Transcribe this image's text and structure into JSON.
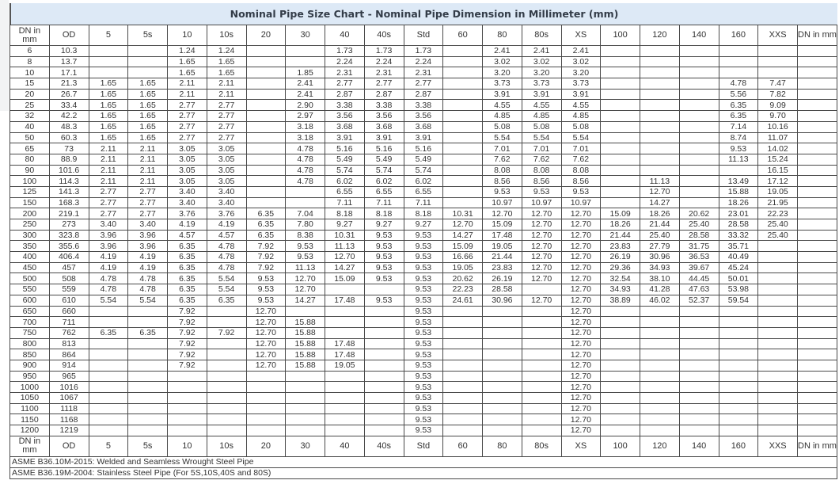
{
  "title": "Nominal Pipe Size Chart - Nominal Pipe Dimension in Millimeter (mm)",
  "headers": [
    "DN in mm",
    "OD",
    "5",
    "5s",
    "10",
    "10s",
    "20",
    "30",
    "40",
    "40s",
    "Std",
    "60",
    "80",
    "80s",
    "XS",
    "100",
    "120",
    "140",
    "160",
    "XXS",
    "DN in mm"
  ],
  "rows": [
    [
      "6",
      "10.3",
      "",
      "",
      "1.24",
      "1.24",
      "",
      "",
      "1.73",
      "1.73",
      "1.73",
      "",
      "2.41",
      "2.41",
      "2.41",
      "",
      "",
      "",
      "",
      "",
      ""
    ],
    [
      "8",
      "13.7",
      "",
      "",
      "1.65",
      "1.65",
      "",
      "",
      "2.24",
      "2.24",
      "2.24",
      "",
      "3.02",
      "3.02",
      "3.02",
      "",
      "",
      "",
      "",
      "",
      ""
    ],
    [
      "10",
      "17.1",
      "",
      "",
      "1.65",
      "1.65",
      "",
      "1.85",
      "2.31",
      "2.31",
      "2.31",
      "",
      "3.20",
      "3.20",
      "3.20",
      "",
      "",
      "",
      "",
      "",
      ""
    ],
    [
      "15",
      "21.3",
      "1.65",
      "1.65",
      "2.11",
      "2.11",
      "",
      "2.41",
      "2.77",
      "2.77",
      "2.77",
      "",
      "3.73",
      "3.73",
      "3.73",
      "",
      "",
      "",
      "4.78",
      "7.47",
      ""
    ],
    [
      "20",
      "26.7",
      "1.65",
      "1.65",
      "2.11",
      "2.11",
      "",
      "2.41",
      "2.87",
      "2.87",
      "2.87",
      "",
      "3.91",
      "3.91",
      "3.91",
      "",
      "",
      "",
      "5.56",
      "7.82",
      ""
    ],
    [
      "25",
      "33.4",
      "1.65",
      "1.65",
      "2.77",
      "2.77",
      "",
      "2.90",
      "3.38",
      "3.38",
      "3.38",
      "",
      "4.55",
      "4.55",
      "4.55",
      "",
      "",
      "",
      "6.35",
      "9.09",
      ""
    ],
    [
      "32",
      "42.2",
      "1.65",
      "1.65",
      "2.77",
      "2.77",
      "",
      "2.97",
      "3.56",
      "3.56",
      "3.56",
      "",
      "4.85",
      "4.85",
      "4.85",
      "",
      "",
      "",
      "6.35",
      "9.70",
      ""
    ],
    [
      "40",
      "48.3",
      "1.65",
      "1.65",
      "2.77",
      "2.77",
      "",
      "3.18",
      "3.68",
      "3.68",
      "3.68",
      "",
      "5.08",
      "5.08",
      "5.08",
      "",
      "",
      "",
      "7.14",
      "10.16",
      ""
    ],
    [
      "50",
      "60.3",
      "1.65",
      "1.65",
      "2.77",
      "2.77",
      "",
      "3.18",
      "3.91",
      "3.91",
      "3.91",
      "",
      "5.54",
      "5.54",
      "5.54",
      "",
      "",
      "",
      "8.74",
      "11.07",
      ""
    ],
    [
      "65",
      "73",
      "2.11",
      "2.11",
      "3.05",
      "3.05",
      "",
      "4.78",
      "5.16",
      "5.16",
      "5.16",
      "",
      "7.01",
      "7.01",
      "7.01",
      "",
      "",
      "",
      "9.53",
      "14.02",
      ""
    ],
    [
      "80",
      "88.9",
      "2.11",
      "2.11",
      "3.05",
      "3.05",
      "",
      "4.78",
      "5.49",
      "5.49",
      "5.49",
      "",
      "7.62",
      "7.62",
      "7.62",
      "",
      "",
      "",
      "11.13",
      "15.24",
      ""
    ],
    [
      "90",
      "101.6",
      "2.11",
      "2.11",
      "3.05",
      "3.05",
      "",
      "4.78",
      "5.74",
      "5.74",
      "5.74",
      "",
      "8.08",
      "8.08",
      "8.08",
      "",
      "",
      "",
      "",
      "16.15",
      ""
    ],
    [
      "100",
      "114.3",
      "2.11",
      "2.11",
      "3.05",
      "3.05",
      "",
      "4.78",
      "6.02",
      "6.02",
      "6.02",
      "",
      "8.56",
      "8.56",
      "8.56",
      "",
      "11.13",
      "",
      "13.49",
      "17.12",
      ""
    ],
    [
      "125",
      "141.3",
      "2.77",
      "2.77",
      "3.40",
      "3.40",
      "",
      "",
      "6.55",
      "6.55",
      "6.55",
      "",
      "9.53",
      "9.53",
      "9.53",
      "",
      "12.70",
      "",
      "15.88",
      "19.05",
      ""
    ],
    [
      "150",
      "168.3",
      "2.77",
      "2.77",
      "3.40",
      "3.40",
      "",
      "",
      "7.11",
      "7.11",
      "7.11",
      "",
      "10.97",
      "10.97",
      "10.97",
      "",
      "14.27",
      "",
      "18.26",
      "21.95",
      ""
    ],
    [
      "200",
      "219.1",
      "2.77",
      "2.77",
      "3.76",
      "3.76",
      "6.35",
      "7.04",
      "8.18",
      "8.18",
      "8.18",
      "10.31",
      "12.70",
      "12.70",
      "12.70",
      "15.09",
      "18.26",
      "20.62",
      "23.01",
      "22.23",
      ""
    ],
    [
      "250",
      "273",
      "3.40",
      "3.40",
      "4.19",
      "4.19",
      "6.35",
      "7.80",
      "9.27",
      "9.27",
      "9.27",
      "12.70",
      "15.09",
      "12.70",
      "12.70",
      "18.26",
      "21.44",
      "25.40",
      "28.58",
      "25.40",
      ""
    ],
    [
      "300",
      "323.8",
      "3.96",
      "3.96",
      "4.57",
      "4.57",
      "6.35",
      "8.38",
      "10.31",
      "9.53",
      "9.53",
      "14.27",
      "17.48",
      "12.70",
      "12.70",
      "21.44",
      "25.40",
      "28.58",
      "33.32",
      "25.40",
      ""
    ],
    [
      "350",
      "355.6",
      "3.96",
      "3.96",
      "6.35",
      "4.78",
      "7.92",
      "9.53",
      "11.13",
      "9.53",
      "9.53",
      "15.09",
      "19.05",
      "12.70",
      "12.70",
      "23.83",
      "27.79",
      "31.75",
      "35.71",
      "",
      ""
    ],
    [
      "400",
      "406.4",
      "4.19",
      "4.19",
      "6.35",
      "4.78",
      "7.92",
      "9.53",
      "12.70",
      "9.53",
      "9.53",
      "16.66",
      "21.44",
      "12.70",
      "12.70",
      "26.19",
      "30.96",
      "36.53",
      "40.49",
      "",
      ""
    ],
    [
      "450",
      "457",
      "4.19",
      "4.19",
      "6.35",
      "4.78",
      "7.92",
      "11.13",
      "14.27",
      "9.53",
      "9.53",
      "19.05",
      "23.83",
      "12.70",
      "12.70",
      "29.36",
      "34.93",
      "39.67",
      "45.24",
      "",
      ""
    ],
    [
      "500",
      "508",
      "4.78",
      "4.78",
      "6.35",
      "5.54",
      "9.53",
      "12.70",
      "15.09",
      "9.53",
      "9.53",
      "20.62",
      "26.19",
      "12.70",
      "12.70",
      "32.54",
      "38.10",
      "44.45",
      "50.01",
      "",
      ""
    ],
    [
      "550",
      "559",
      "4.78",
      "4.78",
      "6.35",
      "5.54",
      "9.53",
      "12.70",
      "",
      "",
      "9.53",
      "22.23",
      "28.58",
      "",
      "12.70",
      "34.93",
      "41.28",
      "47.63",
      "53.98",
      "",
      ""
    ],
    [
      "600",
      "610",
      "5.54",
      "5.54",
      "6.35",
      "6.35",
      "9.53",
      "14.27",
      "17.48",
      "9.53",
      "9.53",
      "24.61",
      "30.96",
      "12.70",
      "12.70",
      "38.89",
      "46.02",
      "52.37",
      "59.54",
      "",
      ""
    ],
    [
      "650",
      "660",
      "",
      "",
      "7.92",
      "",
      "12.70",
      "",
      "",
      "",
      "9.53",
      "",
      "",
      "",
      "12.70",
      "",
      "",
      "",
      "",
      "",
      ""
    ],
    [
      "700",
      "711",
      "",
      "",
      "7.92",
      "",
      "12.70",
      "15.88",
      "",
      "",
      "9.53",
      "",
      "",
      "",
      "12.70",
      "",
      "",
      "",
      "",
      "",
      ""
    ],
    [
      "750",
      "762",
      "6.35",
      "6.35",
      "7.92",
      "7.92",
      "12.70",
      "15.88",
      "",
      "",
      "9.53",
      "",
      "",
      "",
      "12.70",
      "",
      "",
      "",
      "",
      "",
      ""
    ],
    [
      "800",
      "813",
      "",
      "",
      "7.92",
      "",
      "12.70",
      "15.88",
      "17.48",
      "",
      "9.53",
      "",
      "",
      "",
      "12.70",
      "",
      "",
      "",
      "",
      "",
      ""
    ],
    [
      "850",
      "864",
      "",
      "",
      "7.92",
      "",
      "12.70",
      "15.88",
      "17.48",
      "",
      "9.53",
      "",
      "",
      "",
      "12.70",
      "",
      "",
      "",
      "",
      "",
      ""
    ],
    [
      "900",
      "914",
      "",
      "",
      "7.92",
      "",
      "12.70",
      "15.88",
      "19.05",
      "",
      "9.53",
      "",
      "",
      "",
      "12.70",
      "",
      "",
      "",
      "",
      "",
      ""
    ],
    [
      "950",
      "965",
      "",
      "",
      "",
      "",
      "",
      "",
      "",
      "",
      "9.53",
      "",
      "",
      "",
      "12.70",
      "",
      "",
      "",
      "",
      "",
      ""
    ],
    [
      "1000",
      "1016",
      "",
      "",
      "",
      "",
      "",
      "",
      "",
      "",
      "9.53",
      "",
      "",
      "",
      "12.70",
      "",
      "",
      "",
      "",
      "",
      ""
    ],
    [
      "1050",
      "1067",
      "",
      "",
      "",
      "",
      "",
      "",
      "",
      "",
      "9.53",
      "",
      "",
      "",
      "12.70",
      "",
      "",
      "",
      "",
      "",
      ""
    ],
    [
      "1100",
      "1118",
      "",
      "",
      "",
      "",
      "",
      "",
      "",
      "",
      "9.53",
      "",
      "",
      "",
      "12.70",
      "",
      "",
      "",
      "",
      "",
      ""
    ],
    [
      "1150",
      "1168",
      "",
      "",
      "",
      "",
      "",
      "",
      "",
      "",
      "9.53",
      "",
      "",
      "",
      "12.70",
      "",
      "",
      "",
      "",
      "",
      ""
    ],
    [
      "1200",
      "1219",
      "",
      "",
      "",
      "",
      "",
      "",
      "",
      "",
      "9.53",
      "",
      "",
      "",
      "12.70",
      "",
      "",
      "",
      "",
      "",
      ""
    ]
  ],
  "notes": [
    "ASME B36.10M-2015: Welded and Seamless Wrought Steel Pipe",
    "ASME B36.19M-2004: Stainless Steel Pipe (For 5S,10S,40S and 80S)"
  ],
  "colors": {
    "title_bg": "#dde9f6",
    "title_text": "#333c48",
    "border": "#4a4a4a"
  }
}
